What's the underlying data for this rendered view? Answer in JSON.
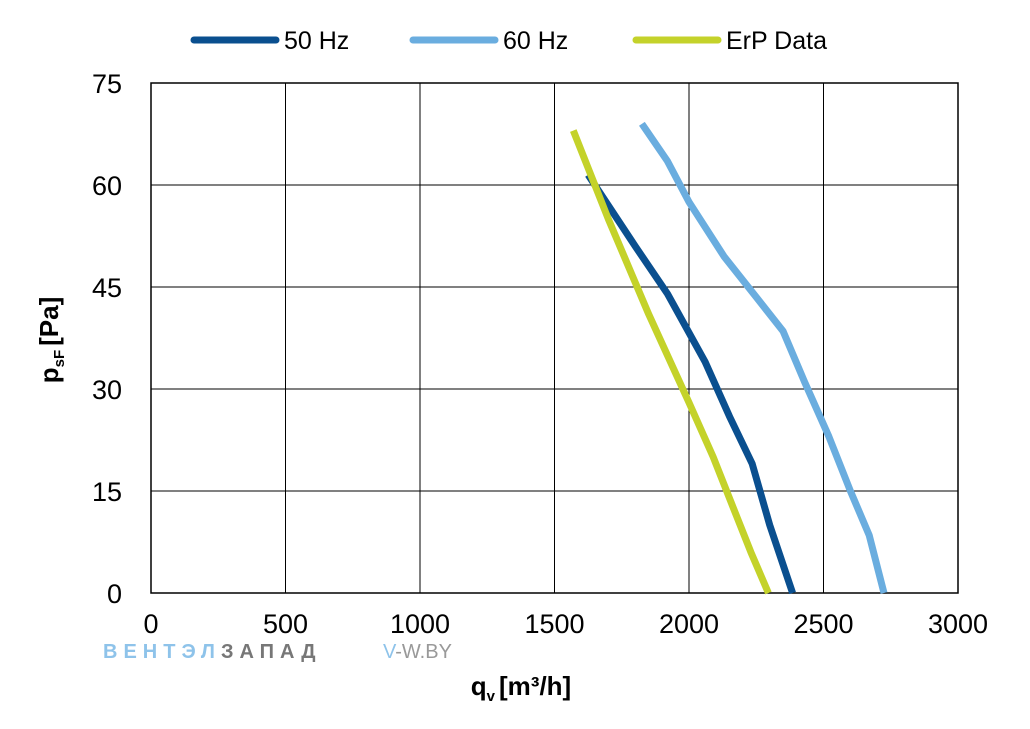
{
  "chart_data": {
    "type": "line",
    "xlabel": "q",
    "xlabel_sub": "v",
    "xlabel_unit": "[m³/h]",
    "ylabel": "p",
    "ylabel_sub": "sF",
    "ylabel_unit": "[Pa]",
    "xlim": [
      0,
      3000
    ],
    "ylim": [
      0,
      75
    ],
    "xticks": [
      0,
      500,
      1000,
      1500,
      2000,
      2500,
      3000
    ],
    "yticks": [
      0,
      15,
      30,
      45,
      60,
      75
    ],
    "grid": true,
    "legend_position": "top",
    "series": [
      {
        "name": "50 Hz",
        "color": "#0a4f8f",
        "points": [
          [
            1625,
            61.5
          ],
          [
            1700,
            57
          ],
          [
            1800,
            51
          ],
          [
            1920,
            44
          ],
          [
            2060,
            34
          ],
          [
            2150,
            26
          ],
          [
            2235,
            19
          ],
          [
            2300,
            10
          ],
          [
            2385,
            0
          ]
        ]
      },
      {
        "name": "60 Hz",
        "color": "#6aaddf",
        "points": [
          [
            1825,
            69
          ],
          [
            1920,
            63.5
          ],
          [
            2000,
            57.5
          ],
          [
            2130,
            49.5
          ],
          [
            2250,
            43.5
          ],
          [
            2350,
            38.5
          ],
          [
            2430,
            31
          ],
          [
            2520,
            23
          ],
          [
            2600,
            15
          ],
          [
            2670,
            8.5
          ],
          [
            2725,
            0
          ]
        ]
      },
      {
        "name": "ErP Data",
        "color": "#c4d22a",
        "points": [
          [
            1570,
            68
          ],
          [
            1700,
            55
          ],
          [
            1850,
            41
          ],
          [
            2000,
            28
          ],
          [
            2090,
            20
          ],
          [
            2170,
            12
          ],
          [
            2230,
            6
          ],
          [
            2295,
            0
          ]
        ]
      }
    ]
  },
  "watermark": {
    "brand_part1": "ВЕНТЭЛ",
    "brand_part2": "ЗАПАД",
    "site_v": "V",
    "site_rest": "-W.BY",
    "color_light": "#8ec3ea",
    "color_dark": "#777777"
  }
}
